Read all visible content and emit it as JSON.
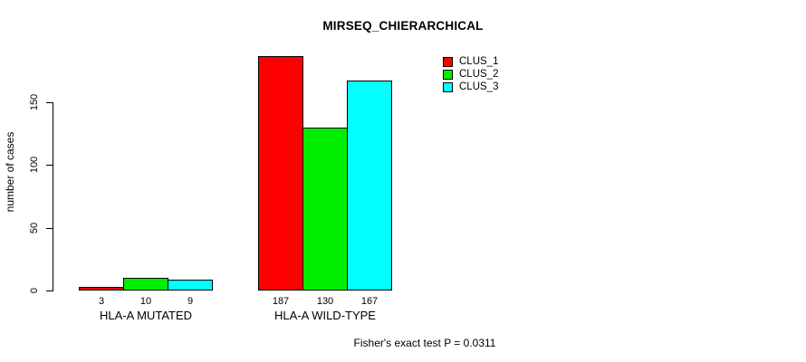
{
  "chart_data": {
    "type": "bar",
    "title": "MIRSEQ_CHIERARCHICAL",
    "ylabel": "number of cases",
    "xlabel": "",
    "ylim": [
      0,
      150
    ],
    "yticks": [
      0,
      50,
      100,
      150
    ],
    "grid": false,
    "legend_position": "top-right",
    "categories": [
      "HLA-A MUTATED",
      "HLA-A WILD-TYPE"
    ],
    "series": [
      {
        "name": "CLUS_1",
        "color": "#ff0000",
        "values": [
          3,
          187
        ]
      },
      {
        "name": "CLUS_2",
        "color": "#00ee00",
        "values": [
          10,
          130
        ]
      },
      {
        "name": "CLUS_3",
        "color": "#00ffff",
        "values": [
          9,
          167
        ]
      }
    ],
    "bar_value_labels": [
      [
        "3",
        "10",
        "9"
      ],
      [
        "187",
        "130",
        "167"
      ]
    ],
    "annotation": "Fisher's exact test P = 0.0311"
  }
}
